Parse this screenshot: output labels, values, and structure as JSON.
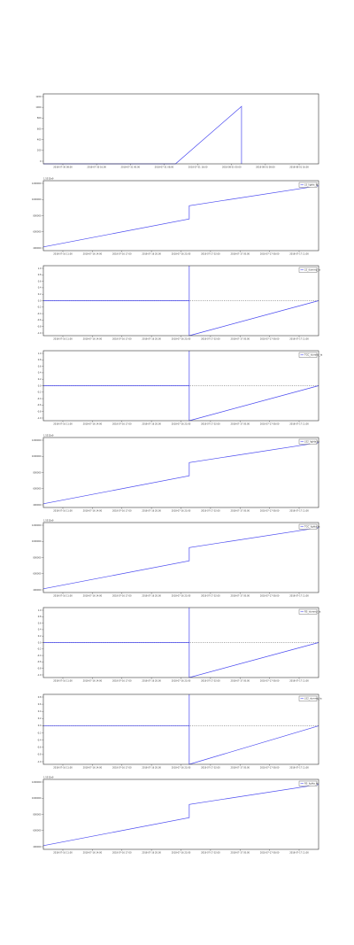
{
  "colors": {
    "series": "#4a4af0",
    "axis": "#333333",
    "background": "#ffffff"
  },
  "chart_data": [
    {
      "type": "line",
      "grid": false,
      "y_ticks": [
        "1200",
        "1000",
        "800",
        "600",
        "400",
        "200",
        "0"
      ],
      "x_ticks": [
        "2018-07-30 08:00",
        "2018-07-30 16:00",
        "2018-07-31 00:00",
        "2018-07-31 08:00",
        "2018-07-31 16:00",
        "2018-08-01 00:00",
        "2018-08-01 08:00",
        "2018-08-01 16:00"
      ],
      "ylim": [
        0,
        1200
      ],
      "series": [
        {
          "x": [
            0.0,
            0.48,
            0.72,
            0.72
          ],
          "values": [
            0,
            0,
            985,
            0
          ]
        }
      ]
    },
    {
      "type": "line",
      "grid": false,
      "offset_text": "1.5532e9",
      "legend": "LS_lights_ts",
      "y_ticks": [
        "1200000",
        "1000000",
        "800000",
        "600000",
        "400000"
      ],
      "x_ticks": [
        "2018-07-16 11:00",
        "2018-07-16 14:00",
        "2018-07-16 17:00",
        "2018-07-16 20:00",
        "2018-07-16 23:00",
        "2018-07-17 02:00",
        "2018-07-17 05:00",
        "2018-07-17 08:00",
        "2018-07-17 11:00"
      ],
      "ylim": [
        350000,
        1300000
      ],
      "series": [
        {
          "x": [
            0.0,
            0.53,
            0.53,
            1.0
          ],
          "values": [
            400000,
            780000,
            960000,
            1230000
          ]
        }
      ]
    },
    {
      "type": "line",
      "grid": false,
      "legend": "LS_dummy_ts",
      "y_ticks": [
        "1.0",
        "0.8",
        "0.6",
        "0.4",
        "0.2",
        "0.0",
        "-0.2",
        "-0.4",
        "-0.6",
        "-0.8",
        "-1.0"
      ],
      "x_ticks": [
        "2018-07-16 11:00",
        "2018-07-16 14:00",
        "2018-07-16 17:00",
        "2018-07-16 20:00",
        "2018-07-16 23:00",
        "2018-07-17 02:00",
        "2018-07-17 05:00",
        "2018-07-17 08:00",
        "2018-07-17 11:00"
      ],
      "ylim": [
        -1,
        1
      ],
      "series": [
        {
          "x": [
            0.0,
            0.53,
            0.53,
            0.53,
            1.0
          ],
          "values": [
            0,
            0,
            1,
            -1,
            0
          ]
        }
      ]
    },
    {
      "type": "line",
      "grid": false,
      "legend": "TGC_dummy_ts",
      "y_ticks": [
        "1.0",
        "0.8",
        "0.6",
        "0.4",
        "0.2",
        "0.0",
        "-0.2",
        "-0.4",
        "-0.6",
        "-0.8",
        "-1.0"
      ],
      "x_ticks": [
        "2018-07-16 11:00",
        "2018-07-16 14:00",
        "2018-07-16 17:00",
        "2018-07-16 20:00",
        "2018-07-16 23:00",
        "2018-07-17 02:00",
        "2018-07-17 05:00",
        "2018-07-17 08:00",
        "2018-07-17 11:00"
      ],
      "ylim": [
        -1,
        1
      ],
      "series": [
        {
          "x": [
            0.0,
            0.53,
            0.53,
            0.53,
            1.0
          ],
          "values": [
            0,
            0,
            1,
            -1,
            0
          ]
        }
      ]
    },
    {
      "type": "line",
      "grid": false,
      "offset_text": "1.5532e9",
      "legend": "LS2_lights_ts",
      "y_ticks": [
        "1200000",
        "1000000",
        "800000",
        "600000",
        "400000"
      ],
      "x_ticks": [
        "2018-07-16 11:00",
        "2018-07-16 14:00",
        "2018-07-16 17:00",
        "2018-07-16 20:00",
        "2018-07-16 23:00",
        "2018-07-17 02:00",
        "2018-07-17 05:00",
        "2018-07-17 08:00",
        "2018-07-17 11:00"
      ],
      "ylim": [
        350000,
        1300000
      ],
      "series": [
        {
          "x": [
            0.0,
            0.53,
            0.53,
            1.0
          ],
          "values": [
            400000,
            780000,
            960000,
            1230000
          ]
        }
      ]
    },
    {
      "type": "line",
      "grid": false,
      "offset_text": "1.5532e9",
      "legend": "TGC_lights_ts",
      "y_ticks": [
        "1200000",
        "1000000",
        "800000",
        "600000",
        "400000"
      ],
      "x_ticks": [
        "2018-07-16 11:00",
        "2018-07-16 14:00",
        "2018-07-16 17:00",
        "2018-07-16 20:00",
        "2018-07-16 23:00",
        "2018-07-17 02:00",
        "2018-07-17 05:00",
        "2018-07-17 08:00",
        "2018-07-17 11:00"
      ],
      "ylim": [
        350000,
        1300000
      ],
      "series": [
        {
          "x": [
            0.0,
            0.53,
            0.53,
            1.0
          ],
          "values": [
            400000,
            780000,
            960000,
            1230000
          ]
        }
      ]
    },
    {
      "type": "line",
      "grid": false,
      "legend": "RS_dummy_ts",
      "y_ticks": [
        "1.0",
        "0.8",
        "0.6",
        "0.4",
        "0.2",
        "0.0",
        "-0.2",
        "-0.4",
        "-0.6",
        "-0.8",
        "-1.0"
      ],
      "x_ticks": [
        "2018-07-16 11:00",
        "2018-07-16 14:00",
        "2018-07-16 17:00",
        "2018-07-16 20:00",
        "2018-07-16 23:00",
        "2018-07-17 02:00",
        "2018-07-17 05:00",
        "2018-07-17 08:00",
        "2018-07-17 11:00"
      ],
      "ylim": [
        -1,
        1
      ],
      "series": [
        {
          "x": [
            0.0,
            0.53,
            0.53,
            0.53,
            1.0
          ],
          "values": [
            0,
            0,
            1,
            -1,
            0
          ]
        }
      ]
    },
    {
      "type": "line",
      "grid": false,
      "legend": "LS2_dummy_ts",
      "y_ticks": [
        "0.8",
        "0.6",
        "0.4",
        "0.2",
        "0.0",
        "-0.2",
        "-0.4",
        "-0.6",
        "-0.8",
        "-1.0"
      ],
      "x_ticks": [
        "2018-07-16 11:00",
        "2018-07-16 14:00",
        "2018-07-16 17:00",
        "2018-07-16 20:00",
        "2018-07-16 23:00",
        "2018-07-17 02:00",
        "2018-07-17 05:00",
        "2018-07-17 08:00",
        "2018-07-17 11:00"
      ],
      "ylim": [
        -1.1,
        0.9
      ],
      "series": [
        {
          "x": [
            0.0,
            0.53,
            0.53,
            0.53,
            1.0
          ],
          "values": [
            0,
            0,
            0.9,
            -1.1,
            0
          ]
        }
      ]
    },
    {
      "type": "line",
      "grid": false,
      "offset_text": "1.5532e9",
      "legend": "RS_lights_ts",
      "y_ticks": [
        "1200000",
        "1000000",
        "800000",
        "600000",
        "400000"
      ],
      "x_ticks": [
        "2018-07-16 11:00",
        "2018-07-16 14:00",
        "2018-07-16 17:00",
        "2018-07-16 20:00",
        "2018-07-16 23:00",
        "2018-07-17 02:00",
        "2018-07-17 05:00",
        "2018-07-17 08:00",
        "2018-07-17 11:00"
      ],
      "ylim": [
        350000,
        1300000
      ],
      "series": [
        {
          "x": [
            0.0,
            0.53,
            0.53,
            1.0
          ],
          "values": [
            400000,
            780000,
            960000,
            1230000
          ]
        }
      ]
    }
  ]
}
